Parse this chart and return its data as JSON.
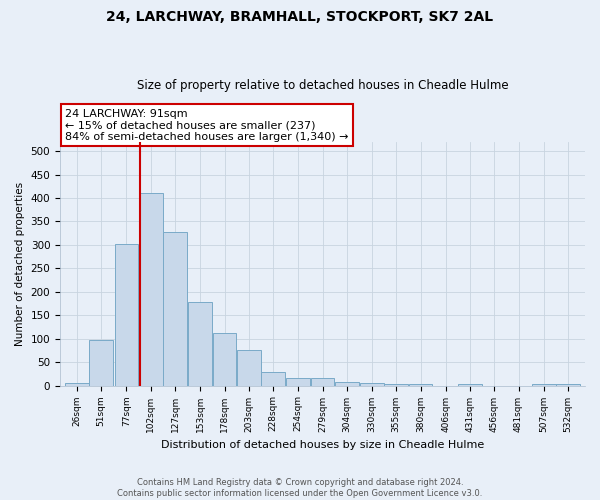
{
  "title": "24, LARCHWAY, BRAMHALL, STOCKPORT, SK7 2AL",
  "subtitle": "Size of property relative to detached houses in Cheadle Hulme",
  "xlabel": "Distribution of detached houses by size in Cheadle Hulme",
  "ylabel": "Number of detached properties",
  "bin_labels": [
    "26sqm",
    "51sqm",
    "77sqm",
    "102sqm",
    "127sqm",
    "153sqm",
    "178sqm",
    "203sqm",
    "228sqm",
    "254sqm",
    "279sqm",
    "304sqm",
    "330sqm",
    "355sqm",
    "380sqm",
    "406sqm",
    "431sqm",
    "456sqm",
    "481sqm",
    "507sqm",
    "532sqm"
  ],
  "bar_values": [
    5,
    98,
    302,
    410,
    328,
    178,
    112,
    75,
    28,
    16,
    16,
    8,
    5,
    4,
    4,
    0,
    4,
    0,
    0,
    3,
    3
  ],
  "bar_color": "#c8d8ea",
  "bar_edge_color": "#7aaac8",
  "vline_x": 91,
  "vline_color": "#cc0000",
  "annotation_title": "24 LARCHWAY: 91sqm",
  "annotation_line1": "← 15% of detached houses are smaller (237)",
  "annotation_line2": "84% of semi-detached houses are larger (1,340) →",
  "annotation_box_color": "#cc0000",
  "ylim": [
    0,
    520
  ],
  "yticks": [
    0,
    50,
    100,
    150,
    200,
    250,
    300,
    350,
    400,
    450,
    500
  ],
  "footer_line1": "Contains HM Land Registry data © Crown copyright and database right 2024.",
  "footer_line2": "Contains public sector information licensed under the Open Government Licence v3.0.",
  "background_color": "#e8eff8",
  "grid_color": "#c8d4e0"
}
